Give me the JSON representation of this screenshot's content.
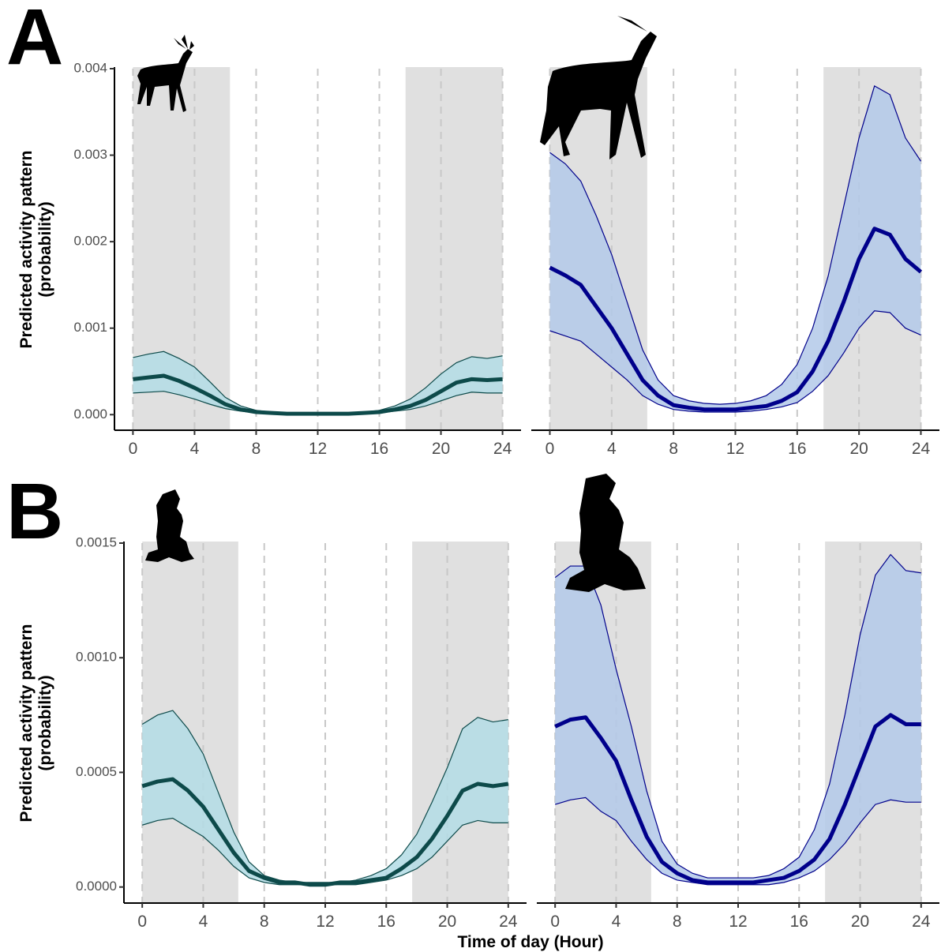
{
  "chart_data": [
    {
      "type": "line",
      "panel_label": "A",
      "ylabel": [
        "Predicted activity pattern",
        "(probability)"
      ],
      "x": [
        0,
        1,
        2,
        3,
        4,
        5,
        6,
        7,
        8,
        9,
        10,
        11,
        12,
        13,
        14,
        15,
        16,
        17,
        18,
        19,
        20,
        21,
        22,
        23,
        24
      ],
      "xlim": [
        -1.2,
        25.2
      ],
      "xticks": [
        0,
        4,
        8,
        12,
        16,
        20,
        24
      ],
      "ylim": [
        -0.00018,
        0.004
      ],
      "yticks": [
        {
          "value": 0,
          "label": "0.000"
        },
        {
          "value": 0.001,
          "label": "0.001"
        },
        {
          "value": 0.002,
          "label": "0.002"
        },
        {
          "value": 0.003,
          "label": "0.003"
        },
        {
          "value": 0.004,
          "label": "0.004"
        }
      ],
      "shaded": [
        [
          0,
          6.3
        ],
        [
          17.7,
          24
        ]
      ],
      "series": [
        {
          "color": "#0d4a4a",
          "band_color": "#b3dce5",
          "values": [
            0.00041,
            0.00043,
            0.00045,
            0.00039,
            0.00031,
            0.00022,
            0.00012,
            6e-05,
            3e-05,
            2e-05,
            1e-05,
            1e-05,
            1e-05,
            1e-05,
            1e-05,
            2e-05,
            3e-05,
            6e-05,
            0.0001,
            0.00017,
            0.00027,
            0.00037,
            0.00041,
            0.0004,
            0.00041
          ],
          "upper": [
            0.00066,
            0.0007,
            0.00073,
            0.00065,
            0.00055,
            0.00038,
            0.0002,
            0.0001,
            5e-05,
            3e-05,
            2e-05,
            2e-05,
            2e-05,
            2e-05,
            2e-05,
            3e-05,
            5e-05,
            0.0001,
            0.00018,
            0.00031,
            0.00047,
            0.0006,
            0.00067,
            0.00065,
            0.00068
          ],
          "lower": [
            0.00025,
            0.00026,
            0.00027,
            0.00023,
            0.00018,
            0.00012,
            7e-05,
            4e-05,
            2e-05,
            1e-05,
            1e-05,
            0,
            0,
            0,
            0,
            1e-05,
            2e-05,
            4e-05,
            6e-05,
            0.0001,
            0.00016,
            0.00022,
            0.00026,
            0.00025,
            0.00025
          ]
        }
      ]
    },
    {
      "type": "line",
      "x": [
        0,
        1,
        2,
        3,
        4,
        5,
        6,
        7,
        8,
        9,
        10,
        11,
        12,
        13,
        14,
        15,
        16,
        17,
        18,
        19,
        20,
        21,
        22,
        23,
        24
      ],
      "xlim": [
        -1.2,
        25.2
      ],
      "xticks": [
        0,
        4,
        8,
        12,
        16,
        20,
        24
      ],
      "ylim": [
        -0.00018,
        0.004
      ],
      "shaded": [
        [
          0,
          6.3
        ],
        [
          17.7,
          24
        ]
      ],
      "series": [
        {
          "color": "#00008b",
          "band_color": "#b3c9e9",
          "values": [
            0.0017,
            0.00161,
            0.0015,
            0.00125,
            0.001,
            0.0007,
            0.0004,
            0.00022,
            0.00011,
            8e-05,
            6e-05,
            6e-05,
            6e-05,
            8e-05,
            0.0001,
            0.00016,
            0.00026,
            0.0005,
            0.00085,
            0.0013,
            0.0018,
            0.00215,
            0.00208,
            0.0018,
            0.00165
          ],
          "upper": [
            0.00303,
            0.0029,
            0.0027,
            0.0023,
            0.00185,
            0.0013,
            0.00075,
            0.0004,
            0.00022,
            0.00016,
            0.00013,
            0.00012,
            0.00013,
            0.00016,
            0.00022,
            0.00035,
            0.00058,
            0.001,
            0.0016,
            0.0024,
            0.0032,
            0.0038,
            0.0037,
            0.0032,
            0.00293
          ],
          "lower": [
            0.00097,
            0.00091,
            0.00085,
            0.0007,
            0.00055,
            0.0004,
            0.00022,
            0.00012,
            6e-05,
            4e-05,
            3e-05,
            3e-05,
            3e-05,
            4e-05,
            6e-05,
            9e-05,
            0.00014,
            0.00027,
            0.00045,
            0.00071,
            0.001,
            0.0012,
            0.00118,
            0.001,
            0.00092
          ]
        }
      ]
    },
    {
      "type": "line",
      "panel_label": "B",
      "ylabel": [
        "Predicted activity pattern",
        "(probability)"
      ],
      "xlabel": "Time of day (Hour)",
      "x": [
        0,
        1,
        2,
        3,
        4,
        5,
        6,
        7,
        8,
        9,
        10,
        11,
        12,
        13,
        14,
        15,
        16,
        17,
        18,
        19,
        20,
        21,
        22,
        23,
        24
      ],
      "xlim": [
        -1.2,
        25.2
      ],
      "xticks": [
        0,
        4,
        8,
        12,
        16,
        20,
        24
      ],
      "ylim": [
        -7e-05,
        0.0015
      ],
      "yticks": [
        {
          "value": 0,
          "label": "0.0000"
        },
        {
          "value": 0.0005,
          "label": "0.0005"
        },
        {
          "value": 0.001,
          "label": "0.0010"
        },
        {
          "value": 0.0015,
          "label": "0.0015"
        }
      ],
      "shaded": [
        [
          0,
          6.3
        ],
        [
          17.7,
          24
        ]
      ],
      "series": [
        {
          "color": "#0d4a4a",
          "band_color": "#b3dce5",
          "values": [
            0.00044,
            0.00046,
            0.00047,
            0.00042,
            0.00035,
            0.00025,
            0.00015,
            7e-05,
            4e-05,
            2e-05,
            2e-05,
            1e-05,
            1e-05,
            2e-05,
            2e-05,
            3e-05,
            4e-05,
            8e-05,
            0.00013,
            0.00021,
            0.00031,
            0.00042,
            0.00045,
            0.00044,
            0.00045
          ],
          "upper": [
            0.00071,
            0.00075,
            0.00077,
            0.00069,
            0.00058,
            0.00041,
            0.00024,
            0.00011,
            5e-05,
            3e-05,
            2e-05,
            2e-05,
            2e-05,
            2e-05,
            3e-05,
            5e-05,
            8e-05,
            0.00014,
            0.00023,
            0.00037,
            0.00052,
            0.00069,
            0.00074,
            0.00072,
            0.00073
          ],
          "lower": [
            0.00027,
            0.00029,
            0.0003,
            0.00026,
            0.00022,
            0.00016,
            9e-05,
            4e-05,
            2e-05,
            1e-05,
            1e-05,
            1e-05,
            1e-05,
            1e-05,
            1e-05,
            2e-05,
            3e-05,
            5e-05,
            8e-05,
            0.00013,
            0.0002,
            0.00027,
            0.00029,
            0.00028,
            0.00028
          ]
        }
      ]
    },
    {
      "type": "line",
      "x": [
        0,
        1,
        2,
        3,
        4,
        5,
        6,
        7,
        8,
        9,
        10,
        11,
        12,
        13,
        14,
        15,
        16,
        17,
        18,
        19,
        20,
        21,
        22,
        23,
        24
      ],
      "xlim": [
        -1.2,
        25.2
      ],
      "xticks": [
        0,
        4,
        8,
        12,
        16,
        20,
        24
      ],
      "ylim": [
        -7e-05,
        0.0015
      ],
      "shaded": [
        [
          0,
          6.3
        ],
        [
          17.7,
          24
        ]
      ],
      "series": [
        {
          "color": "#00008b",
          "band_color": "#b3c9e9",
          "values": [
            0.0007,
            0.00073,
            0.00074,
            0.00065,
            0.00055,
            0.00038,
            0.00022,
            0.00011,
            6e-05,
            3e-05,
            2e-05,
            2e-05,
            2e-05,
            2e-05,
            3e-05,
            4e-05,
            7e-05,
            0.00012,
            0.00021,
            0.00036,
            0.00053,
            0.0007,
            0.00075,
            0.00071,
            0.00071
          ],
          "upper": [
            0.00135,
            0.0014,
            0.0014,
            0.00123,
            0.00095,
            0.0007,
            0.00042,
            0.0002,
            0.0001,
            6e-05,
            4e-05,
            4e-05,
            4e-05,
            4e-05,
            5e-05,
            8e-05,
            0.00013,
            0.00025,
            0.00045,
            0.00075,
            0.0011,
            0.00136,
            0.00145,
            0.00138,
            0.00137
          ],
          "lower": [
            0.00036,
            0.00038,
            0.00039,
            0.00033,
            0.00029,
            0.0002,
            0.00012,
            6e-05,
            3e-05,
            2e-05,
            1e-05,
            1e-05,
            1e-05,
            1e-05,
            1e-05,
            2e-05,
            4e-05,
            7e-05,
            0.00012,
            0.00019,
            0.00028,
            0.00036,
            0.00038,
            0.00037,
            0.00037
          ]
        }
      ]
    }
  ]
}
